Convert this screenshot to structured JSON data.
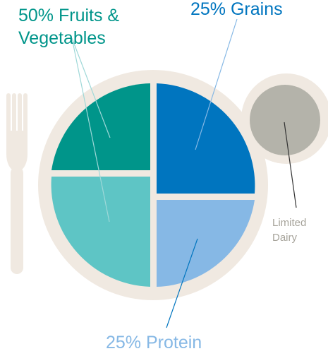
{
  "labels": {
    "fruits_vegetables": {
      "line1": "50% Fruits &",
      "line2": "Vegetables"
    },
    "grains": "25% Grains",
    "protein": "25% Protein",
    "dairy": {
      "line1": "Limited",
      "line2": "Dairy"
    }
  },
  "colors": {
    "plate": "#f0e9e1",
    "fork": "#f0e9e1",
    "vegetables": "#00958a",
    "fruits": "#5ec5c5",
    "grains": "#0075bf",
    "protein": "#86b8e5",
    "dairy": "#b4b3aa",
    "label_fruits": "#00958a",
    "label_grains": "#0075bf",
    "label_protein": "#86b8e5",
    "label_dairy": "#a6a39a",
    "leader_fruits": "#9fd8d8",
    "leader_grains": "#86b8e5",
    "leader_protein": "#0075bf",
    "leader_dairy": "#333333"
  }
}
